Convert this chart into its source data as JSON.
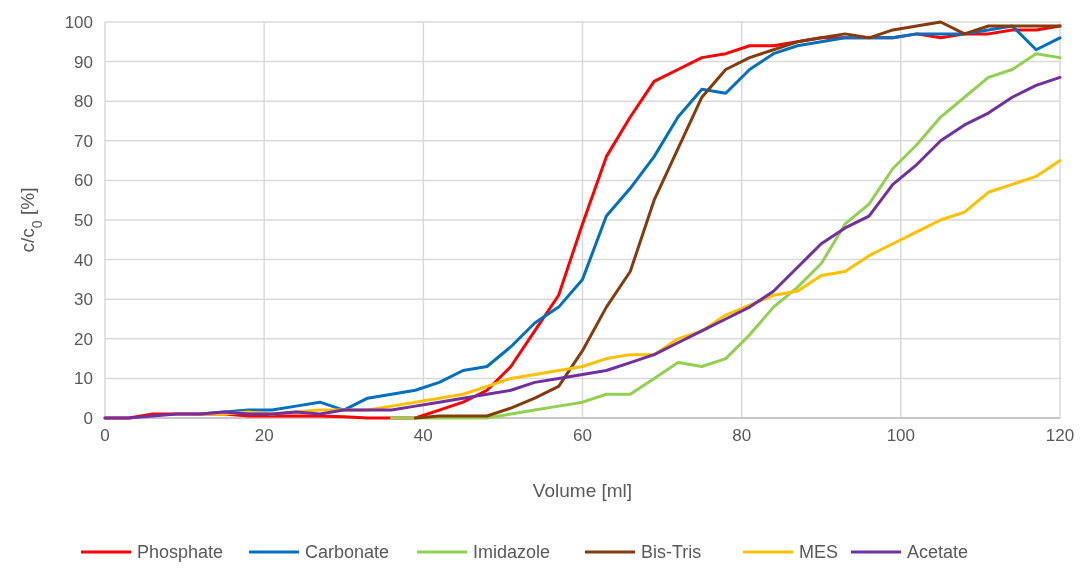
{
  "chart_data": {
    "type": "line",
    "xlabel": "Volume [ml]",
    "ylabel": "c/c$_{0}$ [%]",
    "xlim": [
      0,
      120
    ],
    "xticks": [
      0,
      20,
      40,
      60,
      80,
      100,
      120
    ],
    "ylim": [
      0,
      100
    ],
    "yticks": [
      0,
      10,
      20,
      30,
      40,
      50,
      60,
      70,
      80,
      90,
      100
    ],
    "grid": true,
    "legend": "bottom",
    "line_style": "solid",
    "marker": "none",
    "x": [
      0,
      3,
      6,
      9,
      12,
      15,
      18,
      21,
      24,
      27,
      30,
      33,
      36,
      39,
      42,
      45,
      48,
      51,
      54,
      57,
      60,
      63,
      66,
      69,
      72,
      75,
      78,
      81,
      84,
      87,
      90,
      93,
      96,
      99,
      102,
      105,
      108,
      111,
      114,
      117,
      120
    ],
    "series": [
      {
        "name": "Phosphate",
        "color": "#ff0000",
        "values": [
          0,
          0,
          1,
          1,
          1,
          1,
          0.5,
          0.5,
          0.5,
          0.5,
          0.3,
          0,
          0,
          0,
          2,
          4,
          7,
          13,
          22,
          31,
          49,
          66,
          76,
          85,
          88,
          91,
          92,
          94,
          94,
          95,
          96,
          96,
          96,
          96,
          97,
          96,
          97,
          97,
          98,
          98,
          99
        ]
      },
      {
        "name": "Carbonate",
        "color": "#0070c0",
        "values": [
          null,
          null,
          null,
          null,
          1,
          1.5,
          2,
          2,
          3,
          4,
          2,
          5,
          6,
          7,
          9,
          12,
          13,
          18,
          24,
          28,
          35,
          51,
          58,
          66,
          76,
          83,
          82,
          88,
          92,
          94,
          95,
          96,
          96,
          96,
          97,
          97,
          97,
          98,
          99,
          93,
          96
        ]
      },
      {
        "name": "Imidazole",
        "color": "#92d050",
        "values": [
          null,
          null,
          null,
          null,
          null,
          null,
          null,
          null,
          null,
          null,
          null,
          null,
          0,
          0,
          0,
          0,
          0,
          1,
          2,
          3,
          4,
          6,
          6,
          10,
          14,
          13,
          15,
          21,
          28,
          33,
          39,
          49,
          54,
          63,
          69,
          76,
          81,
          86,
          88,
          92,
          91
        ]
      },
      {
        "name": "Bis-Tris",
        "color": "#843c0c",
        "values": [
          null,
          null,
          null,
          null,
          null,
          null,
          null,
          null,
          null,
          null,
          null,
          null,
          null,
          0,
          0.5,
          0.5,
          0.5,
          2.5,
          5,
          8,
          17,
          28,
          37,
          55,
          68,
          81,
          88,
          91,
          93,
          95,
          96,
          97,
          96,
          98,
          99,
          100,
          97,
          99,
          99,
          99,
          99
        ]
      },
      {
        "name": "MES",
        "color": "#ffc000",
        "values": [
          null,
          null,
          null,
          null,
          1,
          1,
          1.5,
          1,
          1.5,
          2,
          2,
          2,
          3,
          4,
          5,
          6,
          8,
          10,
          11,
          12,
          13,
          15,
          16,
          16,
          20,
          22,
          26,
          28.5,
          31,
          32,
          36,
          37,
          41,
          44,
          47,
          50,
          52,
          57,
          59,
          61,
          65
        ]
      },
      {
        "name": "Acetate",
        "color": "#7030a0",
        "values": [
          0,
          0,
          0.5,
          1,
          1,
          1.5,
          1,
          1,
          1.5,
          1,
          2,
          2,
          2,
          3,
          4,
          5,
          6,
          7,
          9,
          10,
          11,
          12,
          14,
          16,
          19,
          22,
          25,
          28,
          32,
          38,
          44,
          48,
          51,
          59,
          64,
          70,
          74,
          77,
          81,
          84,
          86
        ]
      }
    ]
  }
}
